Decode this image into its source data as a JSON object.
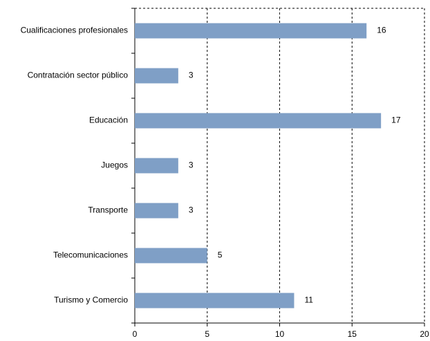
{
  "chart_data": {
    "type": "bar",
    "orientation": "horizontal",
    "categories": [
      "Cualificaciones profesionales",
      "Contratación sector público",
      "Educación",
      "Juegos",
      "Transporte",
      "Telecomunicaciones",
      "Turismo y Comercio"
    ],
    "values": [
      16,
      3,
      17,
      3,
      3,
      5,
      11
    ],
    "color": "#7f9fc6",
    "xlim": [
      0,
      20
    ],
    "xticks": [
      0,
      5,
      10,
      15,
      20
    ],
    "grid": true
  }
}
